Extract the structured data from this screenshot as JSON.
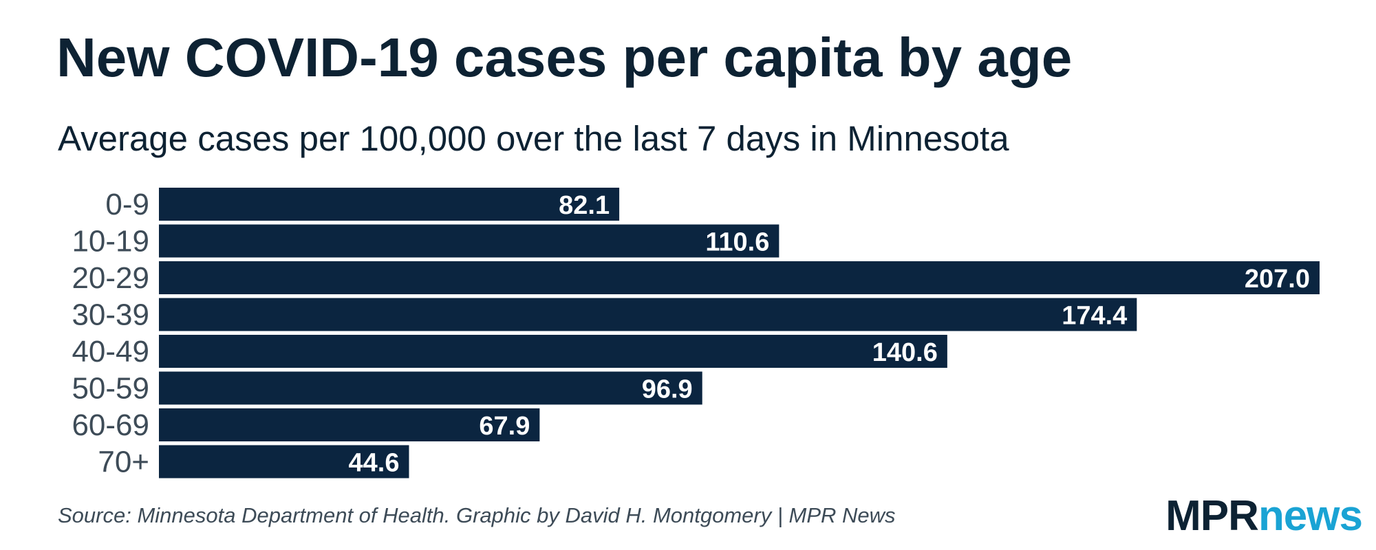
{
  "chart_data": {
    "type": "bar",
    "orientation": "horizontal",
    "title": "New COVID-19 cases per capita by age",
    "subtitle": "Average cases per 100,000 over the last 7 days in Minnesota",
    "categories": [
      "0-9",
      "10-19",
      "20-29",
      "30-39",
      "40-49",
      "50-59",
      "60-69",
      "70+"
    ],
    "values": [
      82.1,
      110.6,
      207.0,
      174.4,
      140.6,
      96.9,
      67.9,
      44.6
    ],
    "value_labels": [
      "82.1",
      "110.6",
      "207.0",
      "174.4",
      "140.6",
      "96.9",
      "67.9",
      "44.6"
    ],
    "xlim": [
      0,
      207.0
    ],
    "xlabel": "",
    "ylabel": "",
    "grid": false,
    "bar_color": "#0b2540"
  },
  "source": "Source: Minnesota Department of Health. Graphic by David H. Montgomery | MPR News",
  "logo": {
    "part1": "MPR",
    "part2": "news",
    "color1": "#0d2233",
    "color2": "#1aa3d4"
  }
}
